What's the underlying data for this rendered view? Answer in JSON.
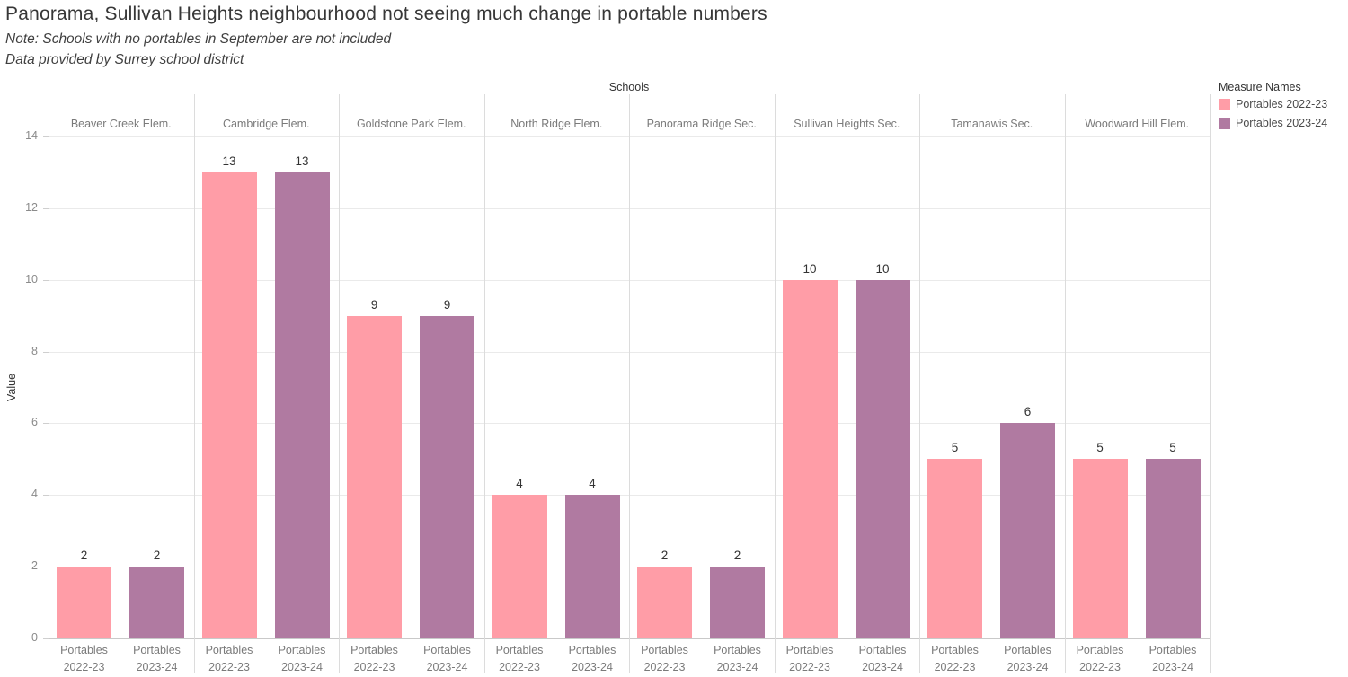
{
  "chart_data": {
    "type": "bar",
    "title": "Panorama, Sullivan Heights neighbourhood not seeing much change in portable numbers",
    "note": "Note: Schools with no portables in September are not included",
    "source": "Data provided by Surrey school district",
    "panel_group_label": "Schools",
    "ylabel": "Value",
    "ylim": [
      0,
      14
    ],
    "yticks": [
      0,
      2,
      4,
      6,
      8,
      10,
      12,
      14
    ],
    "grid": true,
    "legend": {
      "title": "Measure Names",
      "position": "top-right"
    },
    "categories": [
      "Beaver Creek Elem.",
      "Cambridge Elem.",
      "Goldstone Park Elem.",
      "North Ridge Elem.",
      "Panorama Ridge Sec.",
      "Sullivan Heights Sec.",
      "Tamanawis Sec.",
      "Woodward Hill Elem."
    ],
    "series": [
      {
        "name": "Portables 2022-23",
        "color": "#FF9DA7",
        "axis_label_lines": [
          "Portables",
          "2022-23"
        ],
        "values": [
          2,
          13,
          9,
          4,
          2,
          10,
          5,
          5
        ]
      },
      {
        "name": "Portables 2023-24",
        "color": "#B07AA1",
        "axis_label_lines": [
          "Portables",
          "2023-24"
        ],
        "values": [
          2,
          13,
          9,
          4,
          2,
          10,
          6,
          5
        ]
      }
    ]
  }
}
